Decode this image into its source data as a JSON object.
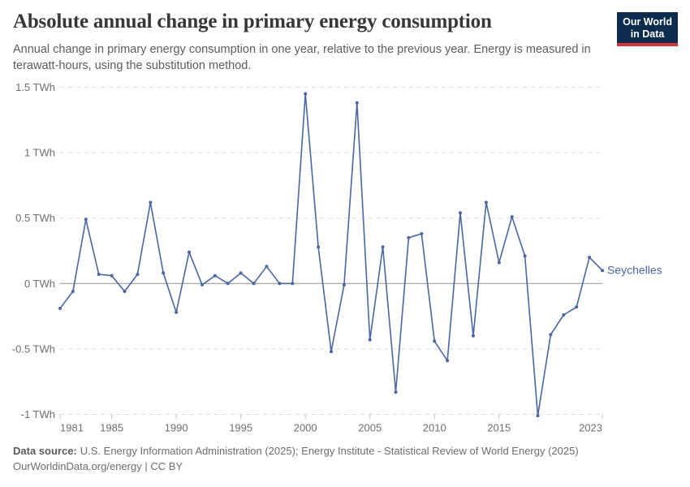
{
  "header": {
    "title": "Absolute annual change in primary energy consumption",
    "subtitle": "Annual change in primary energy consumption in one year, relative to the previous year. Energy is measured in terawatt-hours, using the substitution method.",
    "logo": {
      "line1": "Our World",
      "line2": "in Data",
      "bg_color": "#0c2c4e",
      "accent_color": "#d2353c"
    }
  },
  "chart_data": {
    "type": "line",
    "title": "Absolute annual change in primary energy consumption",
    "unit": "TWh",
    "xlim": [
      1981,
      2023
    ],
    "ylim": [
      -1,
      1.5
    ],
    "grid": "horizontal-dashed",
    "legend_position": "end-of-line-label",
    "line_color": "#4a66a3",
    "zero_line_color": "#8f8f8f",
    "grid_color": "#dcdcdc",
    "tick_mark_color": "#c4c4c4",
    "axis_text_color": "#6e6e6e",
    "yticks": [
      {
        "value": 1.5,
        "label": "1.5 TWh"
      },
      {
        "value": 1,
        "label": "1 TWh"
      },
      {
        "value": 0.5,
        "label": "0.5 TWh"
      },
      {
        "value": 0,
        "label": "0 TWh"
      },
      {
        "value": -0.5,
        "label": "-0.5 TWh"
      },
      {
        "value": -1,
        "label": "-1 TWh"
      }
    ],
    "xticks": [
      {
        "value": 1981,
        "label": "1981"
      },
      {
        "value": 1985,
        "label": "1985"
      },
      {
        "value": 1990,
        "label": "1990"
      },
      {
        "value": 1995,
        "label": "1995"
      },
      {
        "value": 2000,
        "label": "2000"
      },
      {
        "value": 2005,
        "label": "2005"
      },
      {
        "value": 2010,
        "label": "2010"
      },
      {
        "value": 2015,
        "label": "2015"
      },
      {
        "value": 2023,
        "label": "2023"
      }
    ],
    "series": [
      {
        "name": "Seychelles",
        "x": [
          1981,
          1982,
          1983,
          1984,
          1985,
          1986,
          1987,
          1988,
          1989,
          1990,
          1991,
          1992,
          1993,
          1994,
          1995,
          1996,
          1997,
          1998,
          1999,
          2000,
          2001,
          2002,
          2003,
          2004,
          2005,
          2006,
          2007,
          2008,
          2009,
          2010,
          2011,
          2012,
          2013,
          2014,
          2015,
          2016,
          2017,
          2018,
          2019,
          2020,
          2021,
          2022,
          2023
        ],
        "values": [
          -0.19,
          -0.06,
          0.49,
          0.07,
          0.06,
          -0.06,
          0.07,
          0.62,
          0.08,
          -0.22,
          0.24,
          -0.01,
          0.06,
          0,
          0.08,
          0,
          0.13,
          0,
          0,
          1.45,
          0.28,
          -0.52,
          -0.01,
          1.38,
          -0.43,
          0.28,
          -0.83,
          0.35,
          0.38,
          -0.44,
          -0.59,
          0.54,
          -0.4,
          0.62,
          0.16,
          0.51,
          0.21,
          -1.01,
          -0.39,
          -0.24,
          -0.18,
          0.2,
          0.1
        ]
      }
    ]
  },
  "footer": {
    "datasource_label": "Data source:",
    "datasource_text": "U.S. Energy Information Administration (2025); Energy Institute - Statistical Review of World Energy (2025)",
    "link_text": "OurWorldinData.org/energy | CC BY"
  }
}
